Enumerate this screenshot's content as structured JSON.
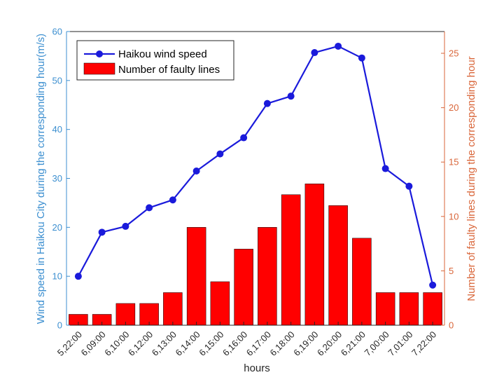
{
  "chart_data": {
    "type": "bar+line",
    "categories": [
      "5,22:00",
      "6,09:00",
      "6,10:00",
      "6,12:00",
      "6,13:00",
      "6,14:00",
      "6,15:00",
      "6,16:00",
      "6,17:00",
      "6,18:00",
      "6,19:00",
      "6,20:00",
      "6,21:00",
      "7,00:00",
      "7,01:00",
      "7,22:00"
    ],
    "xlabel": "hours",
    "series": [
      {
        "name": "Haikou wind speed",
        "type": "line",
        "axis": "left",
        "values": [
          10.0,
          19.0,
          20.2,
          24.0,
          25.6,
          31.5,
          35.0,
          38.3,
          45.3,
          46.8,
          55.7,
          57.0,
          54.6,
          32.0,
          28.4,
          8.2
        ]
      },
      {
        "name": "Number of faulty lines",
        "type": "bar",
        "axis": "right",
        "values": [
          1,
          1,
          2,
          2,
          3,
          9,
          4,
          7,
          9,
          12,
          13,
          11,
          8,
          3,
          3,
          3
        ]
      }
    ],
    "y_left": {
      "label": "Wind speed in Haikou City during the corresponding hour(m/s)",
      "lim": [
        0,
        60
      ],
      "ticks": [
        0,
        10,
        20,
        30,
        40,
        50,
        60
      ]
    },
    "y_right": {
      "label": "Number of faulty lines during the corresponding hour",
      "lim": [
        0,
        27
      ],
      "ticks": [
        0,
        5,
        10,
        15,
        20,
        25
      ]
    },
    "legend_position": "top-left",
    "grid": false,
    "colors": {
      "line": "#1a1adb",
      "bar": "#ff0000",
      "bar_edge": "#000000",
      "left_axis": "#3c8fd0",
      "right_axis": "#d9663a",
      "frame": "#262626"
    }
  }
}
